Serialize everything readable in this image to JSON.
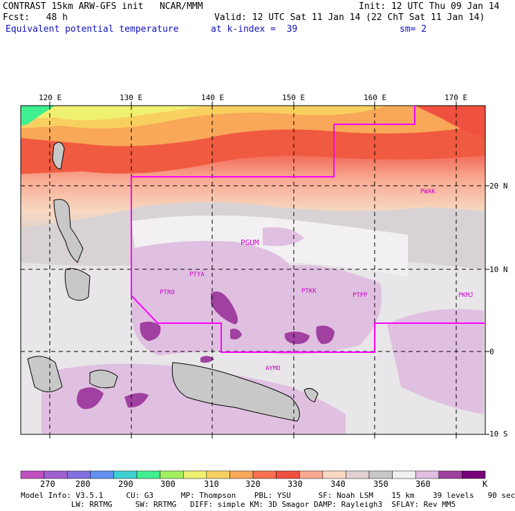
{
  "header": {
    "line1_left": "CONTRAST 15km ARW-GFS init   NCAR/MMM",
    "line1_right": "Init: 12 UTC Thu 09 Jan 14",
    "line2_left": "Fcst:   48 h",
    "line2_right": "Valid: 12 UTC Sat 11 Jan 14 (22 ChT Sat 11 Jan 14)",
    "line3_left": "Equivalent potential temperature",
    "line3_mid": "at k-index =  39",
    "line3_right": "sm= 2"
  },
  "map": {
    "lon_labels": [
      "120 E",
      "130 E",
      "140 E",
      "150 E",
      "160 E",
      "170 E"
    ],
    "lat_labels": [
      "20 N",
      "10 N",
      "0",
      "10 S"
    ],
    "stations": [
      {
        "name": "PGUM"
      },
      {
        "name": "PTYA"
      },
      {
        "name": "PTRO"
      },
      {
        "name": "PTKK"
      },
      {
        "name": "PTPP"
      },
      {
        "name": "PKMJ"
      },
      {
        "name": "PWAK"
      },
      {
        "name": "AYMO"
      }
    ],
    "colors": {
      "boundary": "#ff00ff",
      "station": "#cc00cc"
    }
  },
  "colorbar": {
    "labels": [
      "270",
      "280",
      "290",
      "300",
      "310",
      "320",
      "330",
      "340",
      "350",
      "360"
    ],
    "unit": "K",
    "colors": [
      "#c050c0",
      "#a060d0",
      "#8070e0",
      "#6090f0",
      "#40d0d0",
      "#40f090",
      "#a0f060",
      "#f0f070",
      "#f8d060",
      "#f8a858",
      "#f87050",
      "#f05040",
      "#f8a890",
      "#f8d8c0",
      "#e0d0d0",
      "#c8c8c8",
      "#f0f0f0",
      "#e0c0e0",
      "#a040a0",
      "#780078"
    ]
  },
  "info": {
    "line1": "Model Info: V3.5.1     CU: G3      MP: Thompson    PBL: YSU      SF: Noah LSM    15 km    39 levels   90 sec",
    "line2": "           LW: RRTMG     SW: RRTMG   DIFF: simple KM: 3D Smagor DAMP: Rayleigh3  SFLAY: Rev MM5"
  }
}
